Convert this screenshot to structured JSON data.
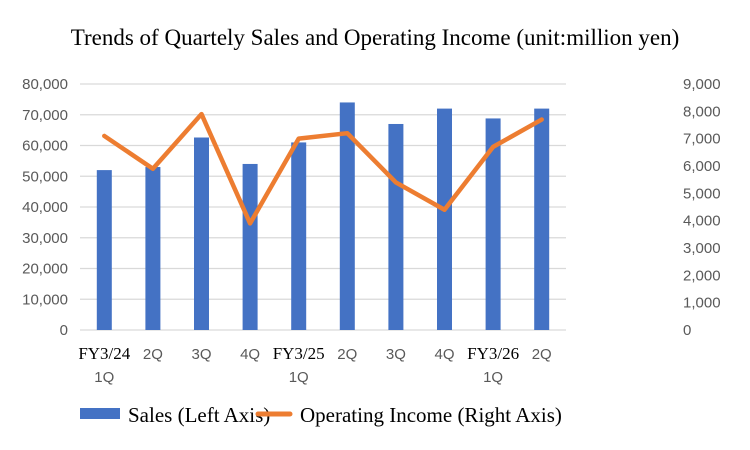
{
  "chart_data": {
    "type": "bar+line",
    "title": "Trends of Quartely Sales and Operating Income (unit:million yen)",
    "categories": [
      {
        "line1": "FY3/24",
        "line2": "1Q"
      },
      {
        "line1": "2Q",
        "line2": ""
      },
      {
        "line1": "3Q",
        "line2": ""
      },
      {
        "line1": "4Q",
        "line2": ""
      },
      {
        "line1": "FY3/25",
        "line2": "1Q"
      },
      {
        "line1": "2Q",
        "line2": ""
      },
      {
        "line1": "3Q",
        "line2": ""
      },
      {
        "line1": "4Q",
        "line2": ""
      },
      {
        "line1": "FY3/26",
        "line2": "1Q"
      },
      {
        "line1": "2Q",
        "line2": ""
      }
    ],
    "left_axis": {
      "min": 0,
      "max": 80000,
      "step": 10000,
      "ticks": [
        "0",
        "10,000",
        "20,000",
        "30,000",
        "40,000",
        "50,000",
        "60,000",
        "70,000",
        "80,000"
      ]
    },
    "right_axis": {
      "min": 0,
      "max": 9000,
      "step": 1000,
      "ticks": [
        "0",
        "1,000",
        "2,000",
        "3,000",
        "4,000",
        "5,000",
        "6,000",
        "7,000",
        "8,000",
        "9,000"
      ]
    },
    "grid": true,
    "legend_position": "bottom",
    "series": [
      {
        "name": "Sales (Left Axis)",
        "type": "bar",
        "axis": "left",
        "color": "#4472C4",
        "values": [
          52000,
          53000,
          62600,
          54000,
          61000,
          74000,
          67000,
          72000,
          68800,
          72000
        ]
      },
      {
        "name": "Operating Income (Right Axis)",
        "type": "line",
        "axis": "right",
        "color": "#ED7D31",
        "values": [
          7100,
          5900,
          7900,
          3900,
          7000,
          7200,
          5400,
          4400,
          6700,
          7700
        ]
      }
    ]
  }
}
